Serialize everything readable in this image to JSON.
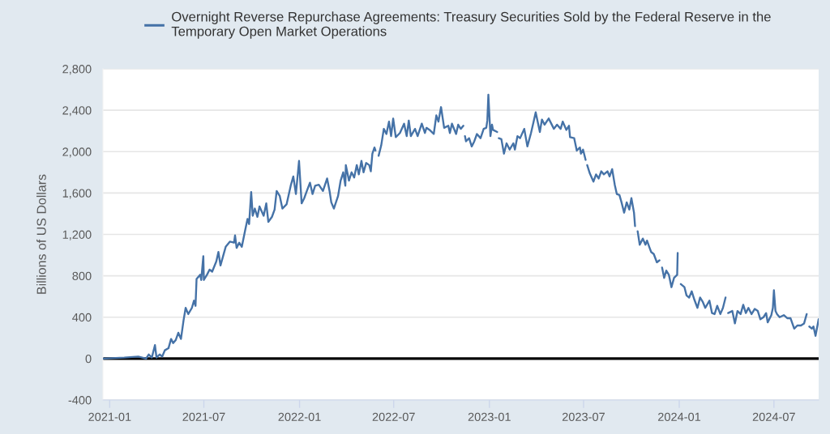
{
  "chart_data": {
    "type": "line",
    "ylabel": "Billions of US Dollars",
    "x": [
      "2020-12-19",
      "2021-01-29",
      "2021-02-25",
      "2021-03-12",
      "2021-03-17",
      "2021-03-23",
      "2021-03-29",
      "2021-04-01",
      "2021-04-07",
      "2021-04-12",
      "2021-04-17",
      "2021-04-24",
      "2021-04-29",
      "2021-05-03",
      "2021-05-08",
      "2021-05-13",
      "2021-05-18",
      "2021-05-23",
      "2021-05-27",
      "2021-06-01",
      "2021-06-08",
      "2021-06-12",
      "2021-06-15",
      "2021-06-17",
      "2021-06-24",
      "2021-06-26",
      "2021-06-30",
      "2021-07-01",
      "2021-07-07",
      "2021-07-12",
      "2021-07-17",
      "2021-07-25",
      "2021-07-29",
      "2021-08-02",
      "2021-08-07",
      "2021-08-12",
      "2021-08-20",
      "2021-08-28",
      "2021-08-30",
      "2021-09-02",
      "2021-09-07",
      "2021-09-12",
      "2021-09-18",
      "2021-09-23",
      "2021-09-26",
      "2021-09-30",
      "2021-10-03",
      "2021-10-07",
      "2021-10-12",
      "2021-10-16",
      "2021-10-24",
      "2021-10-29",
      "2021-11-02",
      "2021-11-09",
      "2021-11-14",
      "2021-11-18",
      "2021-11-24",
      "2021-11-29",
      "2021-12-07",
      "2021-12-15",
      "2021-12-20",
      "2021-12-25",
      "2021-12-31",
      "2022-01-05",
      "2022-01-10",
      "2022-01-15",
      "2022-01-21",
      "2022-01-26",
      "2022-01-31",
      "2022-02-07",
      "2022-02-15",
      "2022-02-23",
      "2022-02-28",
      "2022-03-03",
      "2022-03-08",
      "2022-03-16",
      "2022-03-21",
      "2022-03-26",
      "2022-03-30",
      "2022-03-31",
      "2022-04-06",
      "2022-04-11",
      "2022-04-16",
      "2022-04-21",
      "2022-04-25",
      "2022-04-30",
      "2022-05-04",
      "2022-05-09",
      "2022-05-15",
      "2022-05-18",
      "2022-05-21",
      "2022-05-25",
      "2022-05-27",
      "2022-05-30",
      "2022-06-02",
      "2022-06-07",
      "2022-06-12",
      "2022-06-17",
      "2022-06-22",
      "2022-06-26",
      "2022-06-30",
      "2022-07-05",
      "2022-07-13",
      "2022-07-21",
      "2022-07-26",
      "2022-07-30",
      "2022-08-03",
      "2022-08-11",
      "2022-08-16",
      "2022-08-24",
      "2022-08-30",
      "2022-09-02",
      "2022-09-08",
      "2022-09-16",
      "2022-09-21",
      "2022-09-25",
      "2022-09-30",
      "2022-10-06",
      "2022-10-14",
      "2022-10-17",
      "2022-10-21",
      "2022-10-29",
      "2022-11-02",
      "2022-11-07",
      "2022-11-12",
      "2022-11-14",
      "2022-11-15",
      "2022-11-17",
      "2022-11-23",
      "2022-11-28",
      "2022-12-03",
      "2022-12-08",
      "2022-12-15",
      "2022-12-21",
      "2022-12-26",
      "2022-12-28",
      "2022-12-30",
      "2023-01-03",
      "2023-01-06",
      "2023-01-08",
      "2023-01-16",
      "2023-01-17",
      "2023-01-19",
      "2023-01-24",
      "2023-01-29",
      "2023-02-03",
      "2023-02-09",
      "2023-02-16",
      "2023-02-19",
      "2023-02-24",
      "2023-03-01",
      "2023-03-09",
      "2023-03-15",
      "2023-03-22",
      "2023-03-27",
      "2023-03-31",
      "2023-04-08",
      "2023-04-12",
      "2023-04-17",
      "2023-04-25",
      "2023-05-05",
      "2023-05-11",
      "2023-05-18",
      "2023-05-22",
      "2023-05-29",
      "2023-06-03",
      "2023-06-05",
      "2023-06-13",
      "2023-06-18",
      "2023-06-24",
      "2023-06-26",
      "2023-06-30",
      "2023-07-05",
      "2023-07-06",
      "2023-07-08",
      "2023-07-13",
      "2023-07-20",
      "2023-07-25",
      "2023-07-30",
      "2023-08-04",
      "2023-08-09",
      "2023-08-16",
      "2023-08-20",
      "2023-08-25",
      "2023-08-30",
      "2023-09-03",
      "2023-09-08",
      "2023-09-12",
      "2023-09-17",
      "2023-09-22",
      "2023-09-27",
      "2023-10-01",
      "2023-10-06",
      "2023-10-08",
      "2023-10-10",
      "2023-10-13",
      "2023-10-17",
      "2023-10-23",
      "2023-10-28",
      "2023-10-31",
      "2023-11-05",
      "2023-11-08",
      "2023-11-13",
      "2023-11-19",
      "2023-11-24",
      "2023-11-26",
      "2023-11-29",
      "2023-12-03",
      "2023-12-07",
      "2023-12-12",
      "2023-12-17",
      "2023-12-22",
      "2023-12-26",
      "2023-12-28",
      "2023-12-29",
      "2024-01-01",
      "2024-01-04",
      "2024-01-11",
      "2024-01-15",
      "2024-01-20",
      "2024-01-25",
      "2024-01-30",
      "2024-02-05",
      "2024-02-10",
      "2024-02-15",
      "2024-02-20",
      "2024-02-28",
      "2024-03-04",
      "2024-03-09",
      "2024-03-14",
      "2024-03-20",
      "2024-03-25",
      "2024-03-30",
      "2024-04-01",
      "2024-04-04",
      "2024-04-12",
      "2024-04-17",
      "2024-04-22",
      "2024-04-28",
      "2024-05-03",
      "2024-05-08",
      "2024-05-13",
      "2024-05-19",
      "2024-05-25",
      "2024-05-31",
      "2024-06-05",
      "2024-06-11",
      "2024-06-16",
      "2024-06-19",
      "2024-06-26",
      "2024-06-29",
      "2024-07-01",
      "2024-07-04",
      "2024-07-07",
      "2024-07-12",
      "2024-07-20",
      "2024-07-27",
      "2024-08-02",
      "2024-08-09",
      "2024-08-15",
      "2024-08-22",
      "2024-08-28",
      "2024-09-02",
      "2024-09-04",
      "2024-09-07",
      "2024-09-12",
      "2024-09-15",
      "2024-09-19",
      "2024-09-25"
    ],
    "series": [
      {
        "name": "Overnight Reverse Repurchase Agreements: Treasury Securities Sold by the Federal Reserve in the Temporary Open Market Operations",
        "color": "#4572a7",
        "values": [
          0,
          10,
          20,
          0,
          40,
          10,
          130,
          10,
          40,
          20,
          80,
          100,
          190,
          150,
          180,
          250,
          190,
          370,
          490,
          430,
          490,
          560,
          510,
          770,
          810,
          760,
          990,
          760,
          810,
          860,
          840,
          940,
          1030,
          900,
          990,
          1080,
          1130,
          1120,
          1190,
          1070,
          1120,
          1080,
          1230,
          1350,
          1300,
          1610,
          1380,
          1450,
          1370,
          1470,
          1380,
          1500,
          1320,
          1370,
          1440,
          1620,
          1570,
          1450,
          1490,
          1670,
          1760,
          1590,
          1910,
          1500,
          1550,
          1620,
          1700,
          1590,
          1670,
          1680,
          1620,
          1740,
          1610,
          1510,
          1450,
          1570,
          1720,
          1800,
          1670,
          1870,
          1720,
          1800,
          1750,
          1870,
          1780,
          1910,
          1800,
          1890,
          1870,
          1810,
          1980,
          2040,
          2010,
          null,
          1960,
          2060,
          2220,
          2170,
          2290,
          2150,
          2320,
          2140,
          2180,
          2270,
          2150,
          2300,
          2150,
          2220,
          2150,
          2270,
          2180,
          2230,
          2210,
          2170,
          2350,
          2290,
          2430,
          2230,
          2250,
          2180,
          2270,
          2170,
          2260,
          2220,
          2250,
          null,
          2150,
          2100,
          2130,
          2050,
          2100,
          2170,
          2130,
          2220,
          2230,
          2300,
          2550,
          2150,
          2260,
          2210,
          2190,
          null,
          2130,
          2120,
          1980,
          2080,
          2020,
          2080,
          2020,
          2150,
          2130,
          2220,
          2050,
          2180,
          2290,
          2380,
          2190,
          2310,
          2260,
          2320,
          2220,
          2260,
          2220,
          2290,
          2210,
          2250,
          2140,
          2130,
          2010,
          2040,
          1980,
          2020,
          1920,
          null,
          1870,
          1790,
          1710,
          1780,
          1740,
          1810,
          1780,
          1810,
          1760,
          1830,
          1680,
          1590,
          1580,
          1510,
          1410,
          1510,
          1440,
          1550,
          1410,
          1280,
          null,
          1230,
          1100,
          1160,
          1100,
          1140,
          1070,
          1030,
          1010,
          930,
          950,
          null,
          880,
          780,
          850,
          810,
          690,
          780,
          800,
          810,
          1020,
          null,
          720,
          690,
          610,
          590,
          650,
          570,
          490,
          590,
          550,
          490,
          560,
          440,
          430,
          510,
          430,
          490,
          590,
          null,
          440,
          460,
          340,
          460,
          430,
          520,
          440,
          490,
          430,
          480,
          460,
          380,
          400,
          440,
          350,
          420,
          490,
          660,
          460,
          430,
          400,
          420,
          390,
          390,
          290,
          320,
          320,
          340,
          430,
          null,
          310,
          290,
          310,
          220,
          380
        ]
      }
    ],
    "xlim": [
      "2020-12-19",
      "2024-09-25"
    ],
    "xticks": [
      "2021-01",
      "2021-07",
      "2022-01",
      "2022-07",
      "2023-01",
      "2023-07",
      "2024-01",
      "2024-07"
    ],
    "ylim": [
      -400,
      2800
    ],
    "yticks": [
      -400,
      0,
      400,
      800,
      {
        "value": 1200,
        "label": "1,200"
      },
      {
        "value": 1600,
        "label": "1,600"
      },
      {
        "value": 2000,
        "label": "2,000"
      },
      {
        "value": 2400,
        "label": "2,400"
      },
      {
        "value": 2800,
        "label": "2,800"
      }
    ],
    "ref_lines": [
      {
        "axis": "y",
        "value": 0,
        "color": "#000000"
      }
    ],
    "grid": "y",
    "legend": "top"
  }
}
